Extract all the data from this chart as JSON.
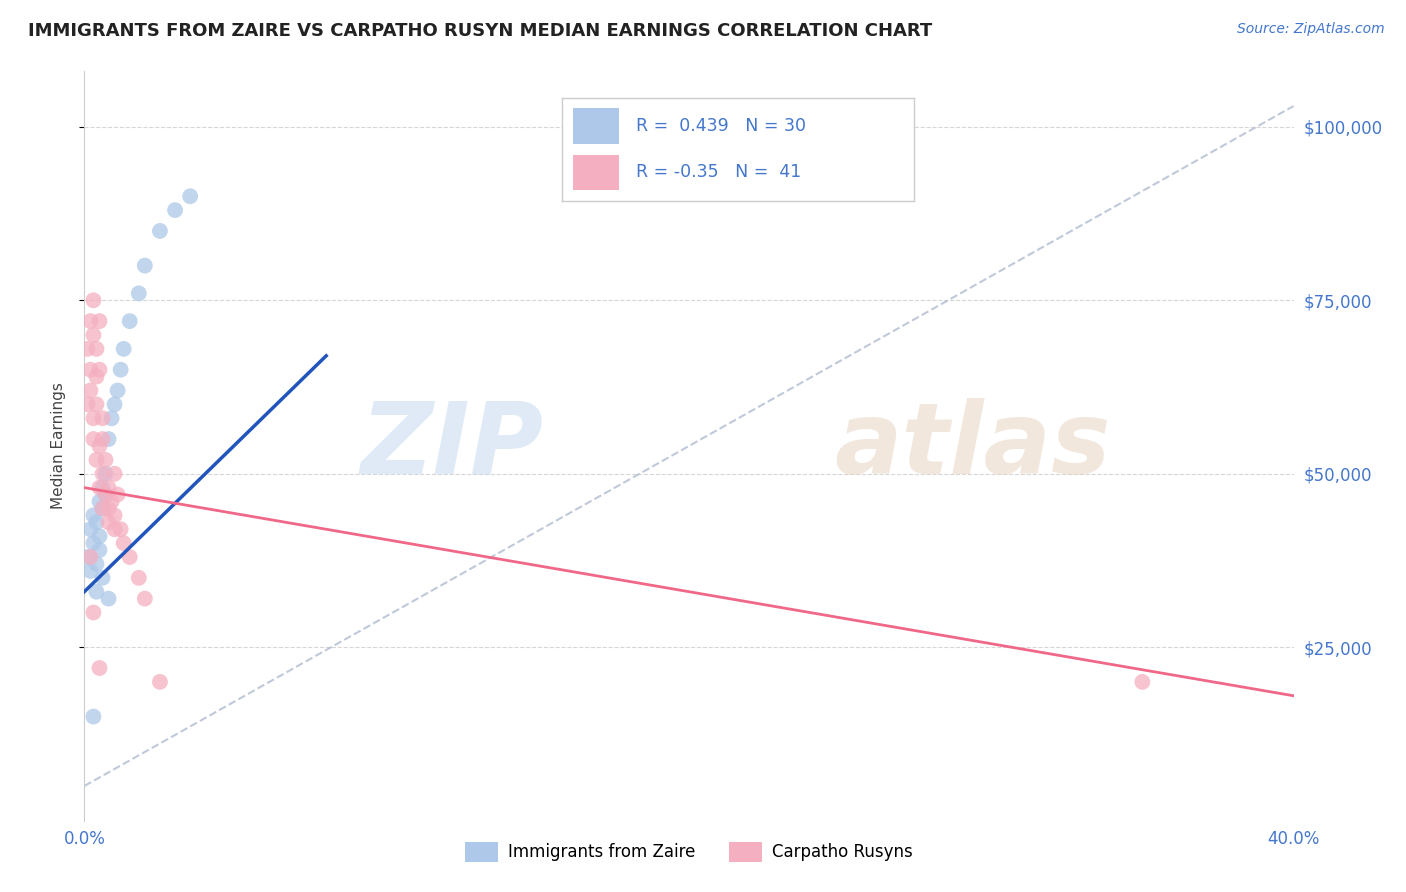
{
  "title": "IMMIGRANTS FROM ZAIRE VS CARPATHO RUSYN MEDIAN EARNINGS CORRELATION CHART",
  "source": "Source: ZipAtlas.com",
  "ylabel": "Median Earnings",
  "xlim": [
    0.0,
    0.4
  ],
  "ylim": [
    0,
    108000
  ],
  "yticks": [
    25000,
    50000,
    75000,
    100000
  ],
  "ytick_labels": [
    "$25,000",
    "$50,000",
    "$75,000",
    "$100,000"
  ],
  "xtick_positions": [
    0.0,
    0.4
  ],
  "xtick_labels": [
    "0.0%",
    "40.0%"
  ],
  "blue_R": 0.439,
  "blue_N": 30,
  "pink_R": -0.35,
  "pink_N": 41,
  "blue_color": "#adc8e8",
  "pink_color": "#f4afc0",
  "blue_line_color": "#2255bb",
  "pink_line_color": "#f06888",
  "legend_blue_label": "Immigrants from Zaire",
  "legend_pink_label": "Carpatho Rusyns",
  "title_color": "#222222",
  "axis_color": "#4477cc",
  "grid_color": "#cccccc",
  "background_color": "#ffffff",
  "blue_x": [
    0.001,
    0.002,
    0.002,
    0.003,
    0.003,
    0.004,
    0.004,
    0.005,
    0.005,
    0.005,
    0.006,
    0.006,
    0.007,
    0.007,
    0.008,
    0.009,
    0.01,
    0.011,
    0.012,
    0.013,
    0.015,
    0.018,
    0.02,
    0.025,
    0.03,
    0.035,
    0.004,
    0.006,
    0.008,
    0.003
  ],
  "blue_y": [
    38000,
    36000,
    42000,
    40000,
    44000,
    37000,
    43000,
    41000,
    39000,
    46000,
    45000,
    48000,
    50000,
    47000,
    55000,
    58000,
    60000,
    62000,
    65000,
    68000,
    72000,
    76000,
    80000,
    85000,
    88000,
    90000,
    33000,
    35000,
    32000,
    15000
  ],
  "pink_x": [
    0.001,
    0.001,
    0.002,
    0.002,
    0.002,
    0.003,
    0.003,
    0.003,
    0.004,
    0.004,
    0.004,
    0.005,
    0.005,
    0.005,
    0.006,
    0.006,
    0.006,
    0.007,
    0.007,
    0.008,
    0.008,
    0.009,
    0.01,
    0.01,
    0.011,
    0.012,
    0.013,
    0.015,
    0.018,
    0.02,
    0.003,
    0.004,
    0.005,
    0.006,
    0.008,
    0.01,
    0.002,
    0.003,
    0.025,
    0.005,
    0.35
  ],
  "pink_y": [
    60000,
    68000,
    62000,
    72000,
    65000,
    58000,
    70000,
    55000,
    64000,
    60000,
    52000,
    54000,
    48000,
    65000,
    50000,
    58000,
    45000,
    52000,
    47000,
    48000,
    43000,
    46000,
    44000,
    50000,
    47000,
    42000,
    40000,
    38000,
    35000,
    32000,
    75000,
    68000,
    72000,
    55000,
    45000,
    42000,
    38000,
    30000,
    20000,
    22000,
    20000
  ],
  "blue_line_x": [
    0.0,
    0.08
  ],
  "blue_line_y": [
    33000,
    67000
  ],
  "pink_line_x": [
    0.0,
    0.4
  ],
  "pink_line_y": [
    48000,
    18000
  ],
  "diag_line_x": [
    0.0,
    0.4
  ],
  "diag_line_y": [
    5000,
    103000
  ]
}
